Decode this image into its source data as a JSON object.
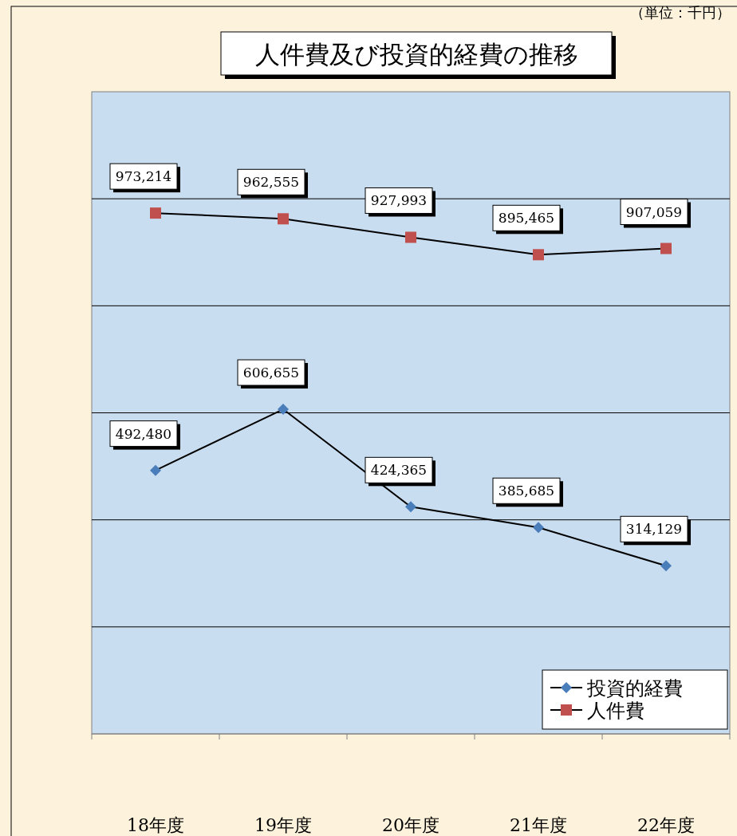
{
  "chart_data": {
    "type": "line",
    "title": "人件費及び投資的経費の推移",
    "annotations": [
      "（単位：千円）"
    ],
    "categories": [
      "18年度",
      "19年度",
      "20年度",
      "21年度",
      "22年度"
    ],
    "series": [
      {
        "name": "投資的経費",
        "color": "#4a7ebb",
        "marker": "diamond",
        "values": [
          492480,
          606655,
          424365,
          385685,
          314129
        ],
        "value_labels": [
          "492,480",
          "606,655",
          "424,365",
          "385,685",
          "314,129"
        ]
      },
      {
        "name": "人件費",
        "color": "#c0504d",
        "marker": "square",
        "values": [
          973214,
          962555,
          927993,
          895465,
          907059
        ],
        "value_labels": [
          "973,214",
          "962,555",
          "927,993",
          "895,465",
          "907,059"
        ]
      }
    ],
    "tick_labels": "x",
    "grid": "y",
    "legend": "bottom right"
  }
}
